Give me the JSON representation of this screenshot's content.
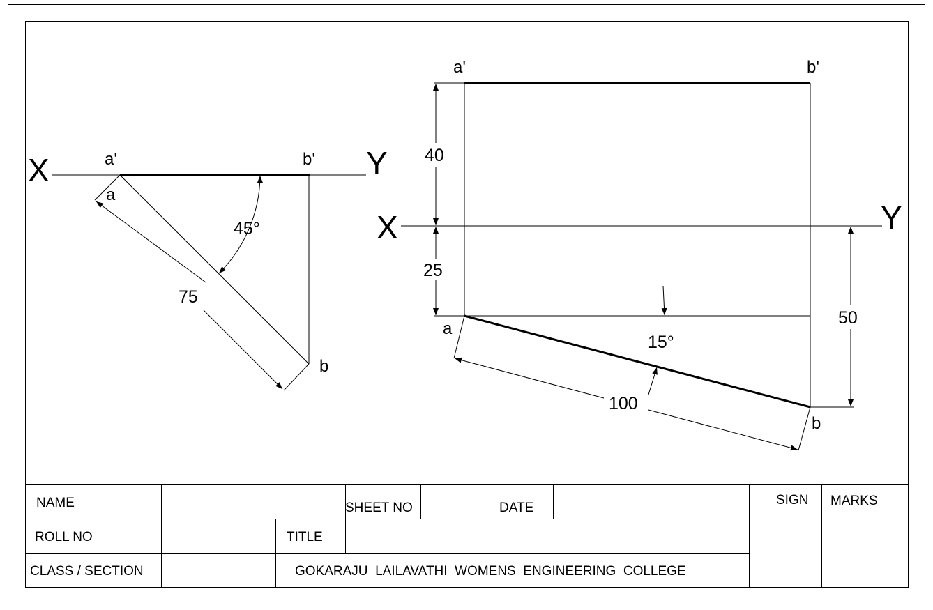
{
  "left_view": {
    "x_label": "X",
    "y_label": "Y",
    "a_prime": "a'",
    "b_prime": "b'",
    "a": "a",
    "b": "b",
    "angle": "45°",
    "length": "75"
  },
  "right_view": {
    "x_label": "X",
    "y_label": "Y",
    "a_prime": "a'",
    "b_prime": "b'",
    "a": "a",
    "b": "b",
    "dim_40": "40",
    "dim_25": "25",
    "dim_50": "50",
    "angle": "15°",
    "length": "100"
  },
  "title_block": {
    "name_label": "NAME",
    "sheet_no_label": "SHEET NO",
    "date_label": "DATE",
    "sign_label": "SIGN",
    "marks_label": "MARKS",
    "roll_no_label": "ROLL NO",
    "title_label": "TITLE",
    "class_section_label": "CLASS / SECTION",
    "college_name": "GOKARAJU  LAILAVATHI  WOMENS  ENGINEERING  COLLEGE"
  }
}
